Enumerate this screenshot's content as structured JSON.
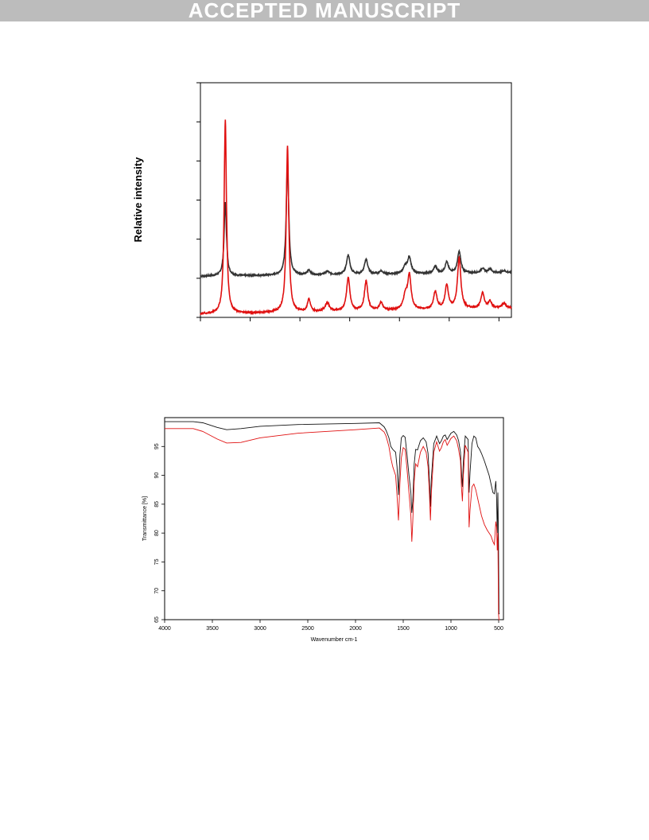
{
  "banner": {
    "text": "ACCEPTED MANUSCRIPT"
  },
  "colors": {
    "black_series": "#333333",
    "red_series": "#e01010",
    "banner_bg": "#bcbcbc"
  },
  "chart_data": [
    {
      "type": "line",
      "title": "",
      "xlabel": "",
      "ylabel": "Relative intensity",
      "x_tick_labels": [],
      "y_tick_labels": [],
      "xlim": [
        0,
        62.5
      ],
      "ylim": [
        0,
        6
      ],
      "grid": false,
      "legend": "none",
      "baselines": [
        1.05,
        0.08
      ],
      "peaks": [
        {
          "x": 5.0,
          "h": [
            1.9,
            4.95
          ],
          "w": 0.28
        },
        {
          "x": 17.5,
          "h": [
            2.85,
            4.25
          ],
          "w": 0.3
        },
        {
          "x": 21.8,
          "h": [
            0.12,
            0.32
          ],
          "w": 0.35
        },
        {
          "x": 25.5,
          "h": [
            0.08,
            0.22
          ],
          "w": 0.5
        },
        {
          "x": 29.7,
          "h": [
            0.5,
            0.85
          ],
          "w": 0.4
        },
        {
          "x": 33.3,
          "h": [
            0.38,
            0.75
          ],
          "w": 0.4
        },
        {
          "x": 36.3,
          "h": [
            0.08,
            0.2
          ],
          "w": 0.4
        },
        {
          "x": 41.2,
          "h": [
            0.18,
            0.35
          ],
          "w": 0.5
        },
        {
          "x": 42.0,
          "h": [
            0.4,
            0.85
          ],
          "w": 0.4
        },
        {
          "x": 47.2,
          "h": [
            0.18,
            0.45
          ],
          "w": 0.4
        },
        {
          "x": 49.5,
          "h": [
            0.28,
            0.6
          ],
          "w": 0.4
        },
        {
          "x": 52.0,
          "h": [
            0.55,
            1.3
          ],
          "w": 0.4
        },
        {
          "x": 56.7,
          "h": [
            0.12,
            0.4
          ],
          "w": 0.4
        },
        {
          "x": 58.2,
          "h": [
            0.1,
            0.18
          ],
          "w": 0.4
        },
        {
          "x": 61.0,
          "h": [
            0.05,
            0.12
          ],
          "w": 0.5
        }
      ],
      "series": [
        {
          "color": "#333333"
        },
        {
          "color": "#e01010"
        }
      ]
    },
    {
      "type": "line",
      "title": "",
      "xlabel": "Wavenumber cm-1",
      "ylabel": "Transmittance [%]",
      "x_ticks": [
        4000,
        3500,
        3000,
        2500,
        2000,
        1500,
        1000,
        500
      ],
      "y_ticks": [
        65,
        70,
        75,
        80,
        85,
        90,
        95
      ],
      "xlim": [
        4000,
        450
      ],
      "ylim": [
        65,
        100
      ],
      "x_reversed": true,
      "grid": false,
      "legend": "none",
      "series": [
        {
          "color": "#111111",
          "x": [
            4000,
            3700,
            3600,
            3450,
            3350,
            3200,
            3000,
            2600,
            2000,
            1750,
            1700,
            1680,
            1650,
            1630,
            1610,
            1580,
            1565,
            1550,
            1535,
            1520,
            1500,
            1480,
            1460,
            1440,
            1420,
            1410,
            1400,
            1385,
            1370,
            1350,
            1320,
            1290,
            1260,
            1240,
            1225,
            1215,
            1205,
            1180,
            1150,
            1120,
            1100,
            1080,
            1060,
            1040,
            1000,
            970,
            940,
            920,
            900,
            890,
            880,
            870,
            850,
            820,
            815,
            810,
            800,
            780,
            760,
            740,
            720,
            700,
            680,
            650,
            620,
            600,
            580,
            560,
            545,
            530,
            522,
            515,
            508,
            502,
            497,
            490
          ],
          "y": [
            99.3,
            99.3,
            99.1,
            98.3,
            97.9,
            98.1,
            98.5,
            98.8,
            99.0,
            99.1,
            98.4,
            97.8,
            96.5,
            95.0,
            94.5,
            94.0,
            91.5,
            86.6,
            93.5,
            96.5,
            96.9,
            96.6,
            93.5,
            90.0,
            87.0,
            83.5,
            85.5,
            92.0,
            94.5,
            94.4,
            96.0,
            96.5,
            95.8,
            93.8,
            89.0,
            84.6,
            89.5,
            95.5,
            96.8,
            95.5,
            96.0,
            96.8,
            97.0,
            96.2,
            97.3,
            97.6,
            97.0,
            96.0,
            94.0,
            90.5,
            88.0,
            92.5,
            96.8,
            96.2,
            91.0,
            87.0,
            90.5,
            95.5,
            96.8,
            96.5,
            95.0,
            94.5,
            93.8,
            92.5,
            91.0,
            90.0,
            88.5,
            87.0,
            86.8,
            89.0,
            86.0,
            80.0,
            87.0,
            78.0,
            66.0,
            66.0
          ]
        },
        {
          "color": "#e01010",
          "x": [
            4000,
            3700,
            3600,
            3450,
            3350,
            3200,
            3000,
            2600,
            2000,
            1750,
            1700,
            1680,
            1650,
            1630,
            1610,
            1580,
            1565,
            1550,
            1535,
            1520,
            1500,
            1480,
            1460,
            1440,
            1420,
            1410,
            1400,
            1385,
            1370,
            1350,
            1320,
            1290,
            1260,
            1240,
            1225,
            1215,
            1205,
            1180,
            1150,
            1120,
            1100,
            1080,
            1060,
            1040,
            1000,
            970,
            940,
            920,
            900,
            890,
            880,
            870,
            850,
            820,
            815,
            810,
            800,
            780,
            760,
            740,
            720,
            700,
            680,
            650,
            620,
            600,
            580,
            560,
            545,
            530,
            522,
            515,
            508,
            502,
            497,
            490
          ],
          "y": [
            98.1,
            98.1,
            97.6,
            96.3,
            95.6,
            95.7,
            96.5,
            97.3,
            97.9,
            98.2,
            97.5,
            96.8,
            95.0,
            93.0,
            91.5,
            90.0,
            86.5,
            82.2,
            88.5,
            93.0,
            94.8,
            94.5,
            91.0,
            87.0,
            83.0,
            78.5,
            82.0,
            89.0,
            92.0,
            91.5,
            94.0,
            95.0,
            94.0,
            91.5,
            86.5,
            82.2,
            87.0,
            94.0,
            95.8,
            94.2,
            94.8,
            95.8,
            96.2,
            95.2,
            96.4,
            96.8,
            96.0,
            94.5,
            92.5,
            88.0,
            85.5,
            90.0,
            95.2,
            94.0,
            86.5,
            81.0,
            84.0,
            88.0,
            88.5,
            87.5,
            86.0,
            84.5,
            83.0,
            81.5,
            80.5,
            80.0,
            79.5,
            78.5,
            78.0,
            82.0,
            81.0,
            77.0,
            80.0,
            66.0,
            65.0,
            65.0
          ]
        }
      ]
    }
  ]
}
